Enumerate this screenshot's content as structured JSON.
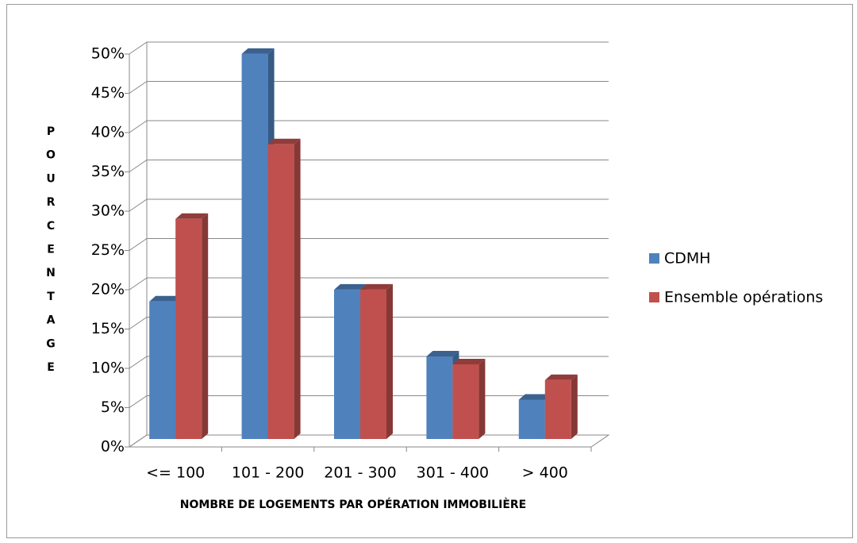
{
  "chart_data": {
    "type": "bar3d",
    "x_label": "NOMBRE DE LOGEMENTS PAR  OPÉRATION IMMOBILIÈRE",
    "y_label": "POURCENTAGE",
    "categories": [
      "<= 100",
      "101 - 200",
      "201 - 300",
      "301 - 400",
      "> 400"
    ],
    "series": [
      {
        "name": "CDMH",
        "color": "#4f81bd",
        "values": [
          17.5,
          49,
          19,
          10.5,
          5
        ]
      },
      {
        "name": "Ensemble opérations",
        "color": "#c0504d",
        "values": [
          28,
          37.5,
          19,
          9.5,
          7.5
        ]
      }
    ],
    "ylim": [
      0,
      50
    ],
    "yticks": [
      {
        "value": 0,
        "label": "0%"
      },
      {
        "value": 5,
        "label": "5%"
      },
      {
        "value": 10,
        "label": "10%"
      },
      {
        "value": 15,
        "label": "15%"
      },
      {
        "value": 20,
        "label": "20%"
      },
      {
        "value": 25,
        "label": "25%"
      },
      {
        "value": 30,
        "label": "30%"
      },
      {
        "value": 35,
        "label": "35%"
      },
      {
        "value": 40,
        "label": "40%"
      },
      {
        "value": 45,
        "label": "45%"
      },
      {
        "value": 50,
        "label": "50%"
      }
    ],
    "grid": true,
    "legend": "right"
  }
}
